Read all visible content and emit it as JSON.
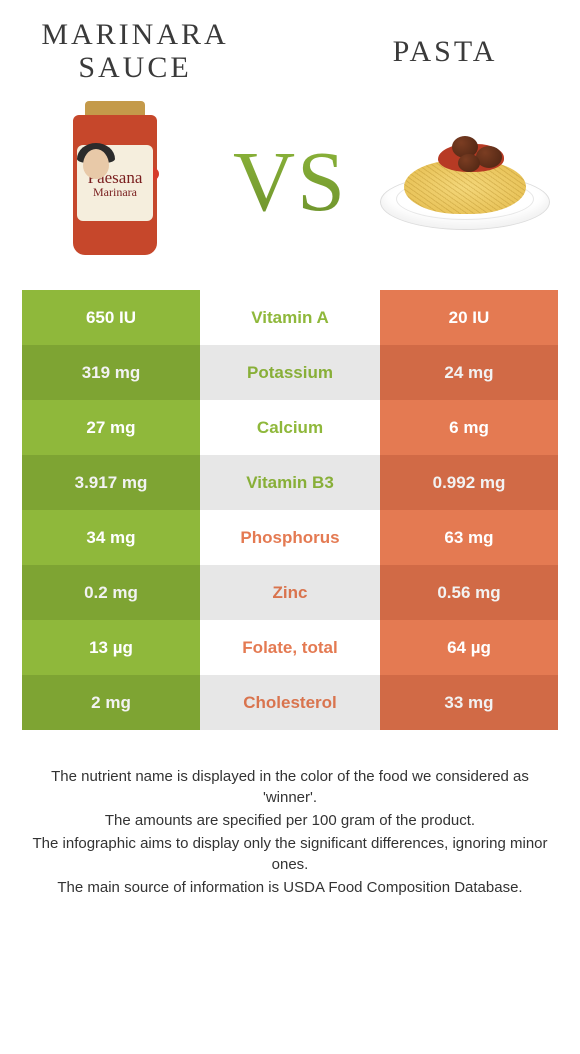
{
  "colors": {
    "left_food": "#8fb83b",
    "right_food": "#e47a52",
    "mid_bg_even": "#f3f3f3",
    "mid_bg_odd": "#ffffff",
    "left_alt": "#85ad36",
    "right_alt": "#dc704a"
  },
  "header": {
    "left_title": "MARINARA SAUCE",
    "right_title": "PASTA",
    "vs": "VS"
  },
  "jar": {
    "brand": "Paesana",
    "sub": "Marinara"
  },
  "table": {
    "rows": [
      {
        "left": "650 IU",
        "label": "Vitamin A",
        "right": "20 IU",
        "winner": "left"
      },
      {
        "left": "319 mg",
        "label": "Potassium",
        "right": "24 mg",
        "winner": "left"
      },
      {
        "left": "27 mg",
        "label": "Calcium",
        "right": "6 mg",
        "winner": "left"
      },
      {
        "left": "3.917 mg",
        "label": "Vitamin B3",
        "right": "0.992 mg",
        "winner": "left"
      },
      {
        "left": "34 mg",
        "label": "Phosphorus",
        "right": "63 mg",
        "winner": "right"
      },
      {
        "left": "0.2 mg",
        "label": "Zinc",
        "right": "0.56 mg",
        "winner": "right"
      },
      {
        "left": "13 µg",
        "label": "Folate, total",
        "right": "64 µg",
        "winner": "right"
      },
      {
        "left": "2 mg",
        "label": "Cholesterol",
        "right": "33 mg",
        "winner": "right"
      }
    ]
  },
  "footer": {
    "line1": "The nutrient name is displayed in the color of the food we considered as 'winner'.",
    "line2": "The amounts are specified per 100 gram of the product.",
    "line3": "The infographic aims to display only the significant differences, ignoring minor ones.",
    "line4": "The main source of information is USDA Food Composition Database."
  }
}
